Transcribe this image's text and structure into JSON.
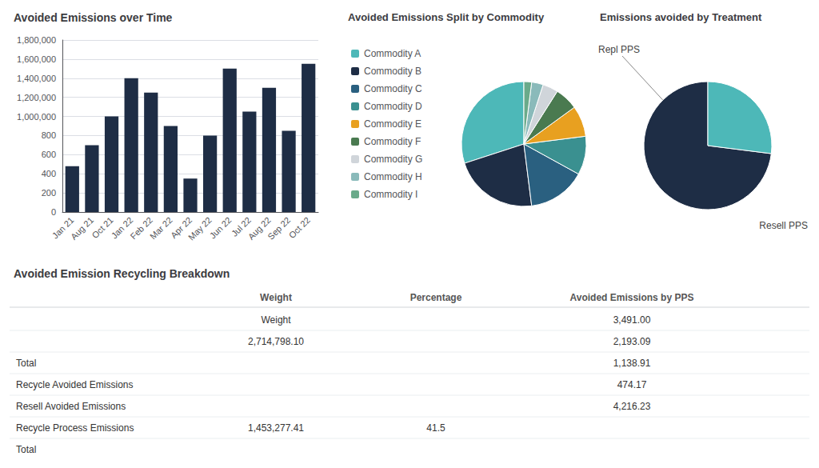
{
  "chart_data": [
    {
      "type": "bar",
      "title": "Avoided Emissions over Time",
      "categories": [
        "Jan 21",
        "Aug 21",
        "Oct 21",
        "Jan 22",
        "Feb 22",
        "Mar 22",
        "Apr 22",
        "May 22",
        "Jun 22",
        "Jul 22",
        "Aug 22",
        "Sep 22",
        "Oct 22"
      ],
      "values": [
        480000,
        700000,
        1000000,
        1400000,
        1250000,
        900000,
        350000,
        800000,
        1500000,
        1050000,
        1300000,
        850000,
        1550000
      ],
      "color": "#1e2d45",
      "ylim": [
        0,
        1800000
      ],
      "yticks": [
        0,
        {
          "value": 200000,
          "label": "200"
        },
        {
          "value": 400000,
          "label": "400"
        },
        {
          "value": 600000,
          "label": "600"
        },
        {
          "value": 800000,
          "label": "800"
        },
        {
          "value": 1000000,
          "label": "1,000,000"
        },
        {
          "value": 1200000,
          "label": "1,200,000"
        },
        {
          "value": 1400000,
          "label": "1,400,000"
        },
        {
          "value": 1600000,
          "label": "1,600,000"
        },
        {
          "value": 1800000,
          "label": "1,800,000"
        }
      ],
      "grid": true
    },
    {
      "type": "pie",
      "title": "Avoided Emissions Split by Commodity",
      "categories": [
        "Commodity A",
        "Commodity B",
        "Commodity C",
        "Commodity D",
        "Commodity E",
        "Commodity F",
        "Commodity G",
        "Commodity H",
        "Commodity I"
      ],
      "values": [
        0.3,
        0.22,
        0.15,
        0.1,
        0.08,
        0.06,
        0.04,
        0.03,
        0.02
      ],
      "colors": [
        "#4db8b8",
        "#1e2d45",
        "#2a6080",
        "#3a9090",
        "#e8a020",
        "#4a7a50",
        "#d0d5da",
        "#8ababa",
        "#6aaa8a"
      ],
      "legend": "left"
    },
    {
      "type": "pie",
      "title": "Emissions avoided by Treatment",
      "values": [
        0.73,
        0.27
      ],
      "colors": [
        "#1e2d45",
        "#4db8b8"
      ],
      "annotations": [
        "Repl PPS",
        "Resell PPS"
      ]
    },
    {
      "type": "table",
      "title": "Avoided Emission Recycling Breakdown",
      "columns": [
        "Weight",
        "Percentage",
        "Avoided Emissions by PPS"
      ],
      "categories": [
        null,
        null,
        "Total",
        "Recycle Avoided Emissions",
        "Resell Avoided Emissions",
        "Recycle Process Emissions",
        "Total"
      ],
      "cells": [
        [
          "Weight",
          null,
          "3,491.00"
        ],
        [
          "2,714,798.10",
          null,
          "2,193.09"
        ],
        [
          null,
          null,
          "1,138.91"
        ],
        [
          null,
          null,
          "474.17"
        ],
        [
          null,
          null,
          "4,216.23"
        ],
        [
          "1,453,277.41",
          "41.5",
          null
        ],
        [
          null,
          null,
          null
        ]
      ]
    }
  ]
}
